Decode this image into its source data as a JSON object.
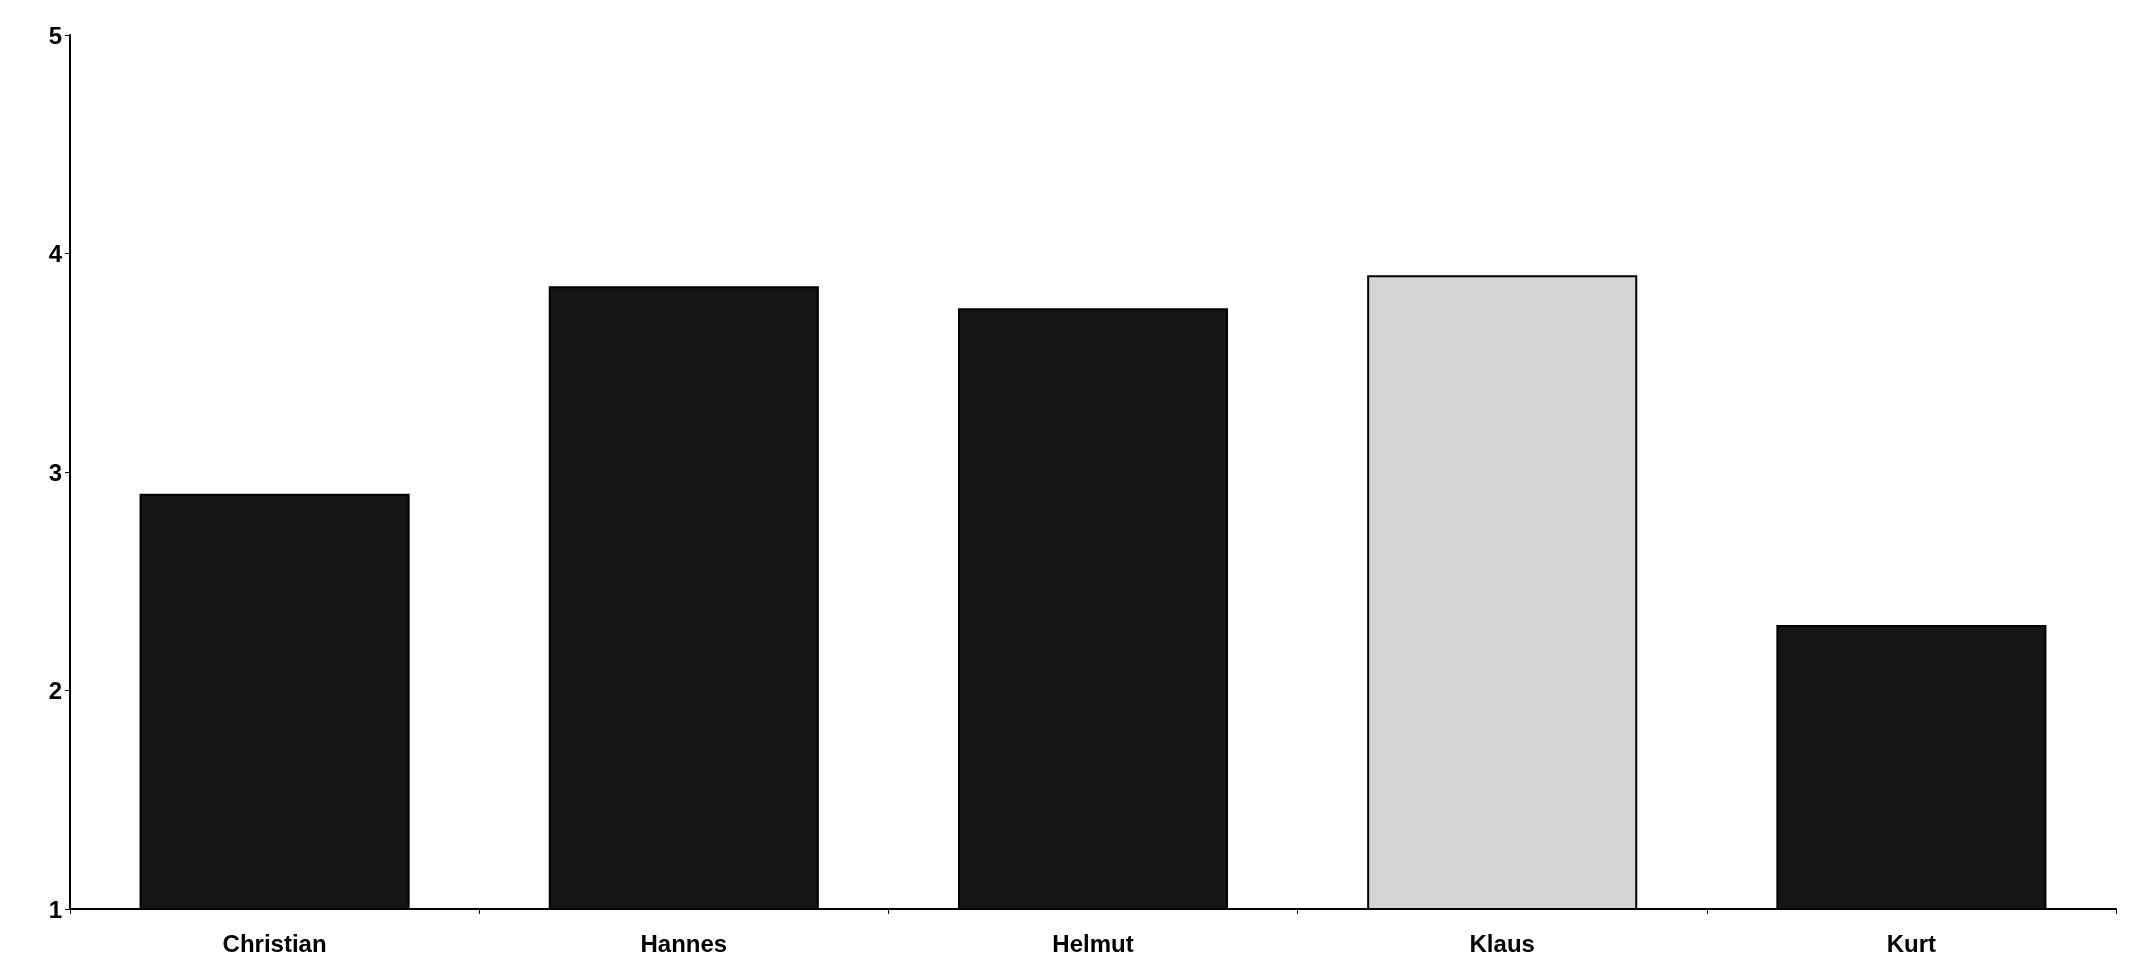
{
  "chart_data": {
    "type": "bar",
    "categories": [
      "Christian",
      "Hannes",
      "Helmut",
      "Klaus",
      "Kurt"
    ],
    "values": [
      2.9,
      3.85,
      3.75,
      3.9,
      2.3
    ],
    "colors": [
      "#151515",
      "#151515",
      "#151515",
      "#d4d4d4",
      "#151515"
    ],
    "ylim": [
      1,
      5
    ],
    "yticks": [
      1,
      2,
      3,
      4,
      5
    ],
    "grid": false
  }
}
